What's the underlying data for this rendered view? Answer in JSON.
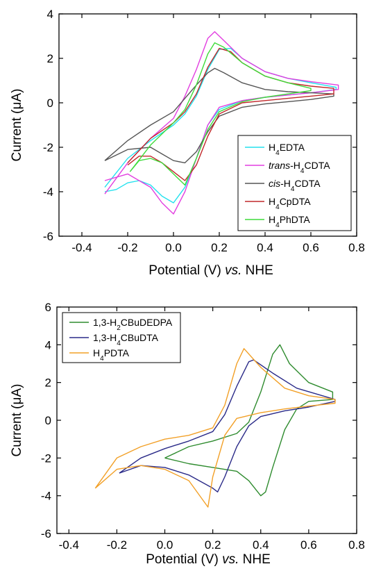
{
  "chart_data": [
    {
      "type": "line",
      "xlabel": "Potential (V) vs. NHE",
      "ylabel": "Current (μA)",
      "xlim": [
        -0.5,
        0.8
      ],
      "ylim": [
        -6,
        4
      ],
      "xticks": [
        "-0.4",
        "-0.2",
        "0.0",
        "0.2",
        "0.4",
        "0.6",
        "0.8"
      ],
      "yticks": [
        "-6",
        "-4",
        "-2",
        "0",
        "2",
        "4"
      ],
      "legend_position": "bottom-right",
      "series": [
        {
          "name": "H4EDTA",
          "color": "#22e1ee",
          "x": [
            -0.3,
            -0.2,
            -0.1,
            0.0,
            0.05,
            0.1,
            0.15,
            0.2,
            0.25,
            0.3,
            0.4,
            0.5,
            0.6,
            0.71,
            0.71,
            0.6,
            0.5,
            0.4,
            0.3,
            0.2,
            0.15,
            0.1,
            0.05,
            0.0,
            -0.05,
            -0.1,
            -0.15,
            -0.2,
            -0.25,
            -0.3
          ],
          "y": [
            -3.8,
            -2.5,
            -1.7,
            -1.0,
            -0.5,
            0.3,
            1.5,
            2.4,
            2.45,
            2.0,
            1.4,
            1.1,
            0.9,
            0.7,
            0.6,
            0.45,
            0.35,
            0.25,
            0.1,
            -0.3,
            -1.0,
            -2.5,
            -3.8,
            -4.5,
            -4.2,
            -3.7,
            -3.5,
            -3.6,
            -3.9,
            -4.0
          ]
        },
        {
          "name": "trans-H4CDTA",
          "color": "#e23ee0",
          "x": [
            -0.3,
            -0.2,
            -0.1,
            0.0,
            0.05,
            0.1,
            0.15,
            0.18,
            0.22,
            0.3,
            0.4,
            0.5,
            0.6,
            0.72,
            0.72,
            0.6,
            0.5,
            0.4,
            0.3,
            0.2,
            0.15,
            0.1,
            0.05,
            0.0,
            -0.05,
            -0.1,
            -0.2,
            -0.3
          ],
          "y": [
            -4.1,
            -2.7,
            -1.6,
            -0.7,
            0.3,
            1.5,
            2.9,
            3.2,
            2.8,
            2.0,
            1.4,
            1.1,
            0.95,
            0.8,
            0.6,
            0.45,
            0.35,
            0.25,
            0.1,
            -0.2,
            -1.0,
            -2.5,
            -4.0,
            -5.0,
            -4.5,
            -3.8,
            -3.2,
            -3.5
          ]
        },
        {
          "name": "cis-H4CDTA",
          "color": "#555555",
          "x": [
            -0.3,
            -0.2,
            -0.1,
            0.0,
            0.05,
            0.1,
            0.15,
            0.18,
            0.22,
            0.3,
            0.4,
            0.5,
            0.6,
            0.7,
            0.7,
            0.6,
            0.5,
            0.4,
            0.3,
            0.2,
            0.15,
            0.1,
            0.05,
            0.0,
            -0.05,
            -0.1,
            -0.2,
            -0.3
          ],
          "y": [
            -2.6,
            -1.7,
            -1.0,
            -0.4,
            0.2,
            0.8,
            1.35,
            1.55,
            1.35,
            0.9,
            0.6,
            0.5,
            0.45,
            0.4,
            0.3,
            0.15,
            0.05,
            -0.05,
            -0.2,
            -0.6,
            -1.3,
            -2.2,
            -2.7,
            -2.6,
            -2.3,
            -2.0,
            -2.1,
            -2.6
          ]
        },
        {
          "name": "H4CpDTA",
          "color": "#c0282a",
          "x": [
            -0.2,
            -0.1,
            0.0,
            0.05,
            0.1,
            0.15,
            0.2,
            0.25,
            0.3,
            0.4,
            0.5,
            0.6,
            0.7,
            0.7,
            0.6,
            0.5,
            0.4,
            0.3,
            0.2,
            0.15,
            0.1,
            0.05,
            0.0,
            -0.05,
            -0.1,
            -0.15,
            -0.2
          ],
          "y": [
            -2.7,
            -1.6,
            -0.9,
            -0.4,
            0.4,
            1.6,
            2.45,
            2.3,
            1.8,
            1.2,
            0.9,
            0.75,
            0.65,
            0.4,
            0.3,
            0.2,
            0.1,
            0.0,
            -0.5,
            -1.5,
            -2.8,
            -3.5,
            -3.1,
            -2.7,
            -2.4,
            -2.4,
            -2.8
          ]
        },
        {
          "name": "H4PhDTA",
          "color": "#3edc3a",
          "x": [
            -0.19,
            -0.1,
            0.0,
            0.05,
            0.1,
            0.15,
            0.18,
            0.22,
            0.3,
            0.4,
            0.5,
            0.6,
            0.6,
            0.5,
            0.4,
            0.3,
            0.2,
            0.15,
            0.1,
            0.05,
            0.0,
            -0.05,
            -0.1,
            -0.15,
            -0.19
          ],
          "y": [
            -3.1,
            -1.9,
            -0.9,
            -0.3,
            0.8,
            2.2,
            2.7,
            2.5,
            1.8,
            1.2,
            0.9,
            0.65,
            0.55,
            0.4,
            0.25,
            0.05,
            -0.4,
            -1.2,
            -2.5,
            -3.7,
            -3.2,
            -2.7,
            -2.5,
            -2.6,
            -3.1
          ]
        }
      ]
    },
    {
      "type": "line",
      "xlabel": "Potential (V) vs. NHE",
      "ylabel": "Current (μA)",
      "xlim": [
        -0.45,
        0.8
      ],
      "ylim": [
        -6,
        6
      ],
      "xticks": [
        "-0.4",
        "-0.2",
        "0.0",
        "0.2",
        "0.4",
        "0.6",
        "0.8"
      ],
      "yticks": [
        "-6",
        "-4",
        "-2",
        "0",
        "2",
        "4",
        "6"
      ],
      "legend_position": "top-left",
      "series": [
        {
          "name": "1,3-H2CBuDEDPA",
          "color": "#2e8b2e",
          "x": [
            0.0,
            0.1,
            0.2,
            0.3,
            0.35,
            0.4,
            0.45,
            0.48,
            0.52,
            0.6,
            0.7,
            0.7,
            0.6,
            0.55,
            0.5,
            0.45,
            0.42,
            0.4,
            0.35,
            0.3,
            0.2,
            0.1,
            0.0
          ],
          "y": [
            -2.0,
            -1.4,
            -1.1,
            -0.7,
            -0.1,
            1.5,
            3.5,
            4.0,
            3.0,
            2.0,
            1.5,
            1.1,
            1.0,
            0.6,
            -0.5,
            -2.5,
            -3.8,
            -4.0,
            -3.2,
            -2.7,
            -2.5,
            -2.3,
            -2.0
          ]
        },
        {
          "name": "1,3-H4CBuDTA",
          "color": "#2a2a88",
          "x": [
            -0.19,
            -0.1,
            0.0,
            0.1,
            0.2,
            0.25,
            0.3,
            0.35,
            0.37,
            0.45,
            0.55,
            0.71,
            0.71,
            0.6,
            0.5,
            0.4,
            0.35,
            0.3,
            0.25,
            0.22,
            0.2,
            0.1,
            0.0,
            -0.1,
            -0.19
          ],
          "y": [
            -2.8,
            -2.0,
            -1.5,
            -1.1,
            -0.6,
            0.3,
            1.8,
            3.1,
            3.2,
            2.5,
            1.7,
            1.1,
            1.0,
            0.7,
            0.5,
            0.2,
            -0.3,
            -1.4,
            -3.0,
            -3.8,
            -3.6,
            -2.9,
            -2.5,
            -2.4,
            -2.8
          ]
        },
        {
          "name": "H4PDTA",
          "color": "#f2a027",
          "x": [
            -0.29,
            -0.2,
            -0.1,
            0.0,
            0.1,
            0.2,
            0.25,
            0.3,
            0.33,
            0.4,
            0.5,
            0.6,
            0.71,
            0.71,
            0.6,
            0.5,
            0.4,
            0.3,
            0.25,
            0.2,
            0.18,
            0.1,
            0.0,
            -0.1,
            -0.2,
            -0.29
          ],
          "y": [
            -3.6,
            -2.0,
            -1.4,
            -1.0,
            -0.8,
            -0.4,
            0.8,
            3.0,
            3.8,
            2.8,
            1.7,
            1.3,
            1.1,
            0.9,
            0.75,
            0.6,
            0.4,
            0.1,
            -0.8,
            -3.0,
            -4.6,
            -3.2,
            -2.6,
            -2.4,
            -2.6,
            -3.6
          ]
        }
      ]
    }
  ],
  "legend_markup": [
    [
      [
        "H",
        {
          "sub": "4"
        },
        "EDTA"
      ],
      [
        {
          "it": "trans"
        },
        "-H",
        {
          "sub": "4"
        },
        "CDTA"
      ],
      [
        {
          "it": "cis"
        },
        "-H",
        {
          "sub": "4"
        },
        "CDTA"
      ],
      [
        "H",
        {
          "sub": "4"
        },
        "CpDTA"
      ],
      [
        "H",
        {
          "sub": "4"
        },
        "PhDTA"
      ]
    ],
    [
      [
        "1,3-H",
        {
          "sub": "2"
        },
        "CBuDEDPA"
      ],
      [
        "1,3-H",
        {
          "sub": "4"
        },
        "CBuDTA"
      ],
      [
        "H",
        {
          "sub": "4"
        },
        "PDTA"
      ]
    ]
  ],
  "axis_markup": {
    "x": [
      "Potential (V) ",
      {
        "it": "vs."
      },
      " NHE"
    ],
    "y": [
      "Current (",
      {
        "sym": "μ"
      },
      "A)"
    ]
  }
}
